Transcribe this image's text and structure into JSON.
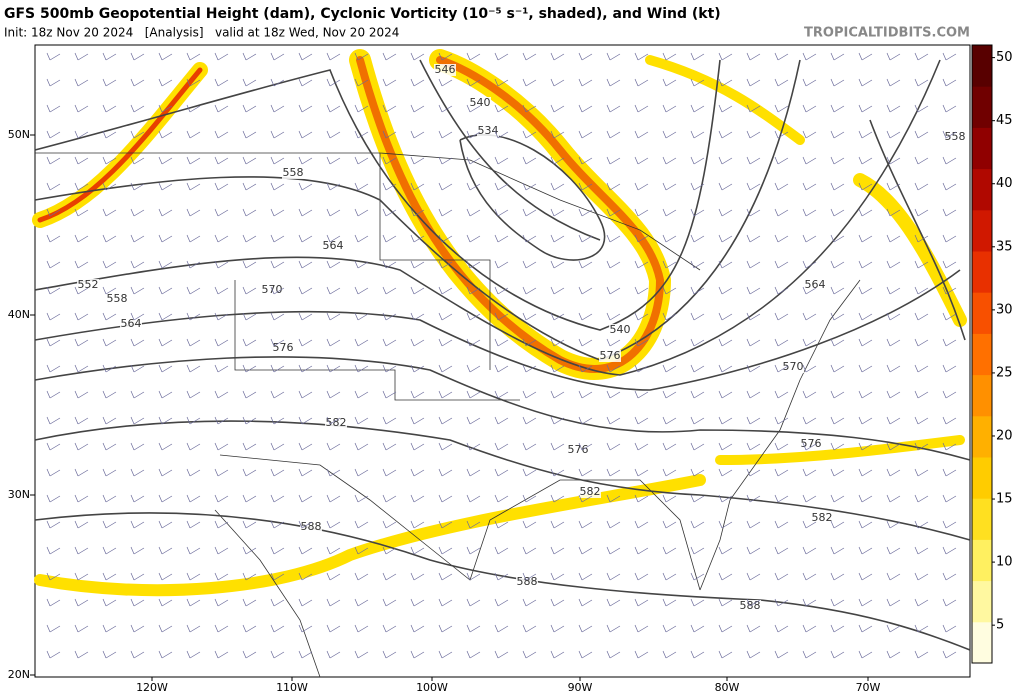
{
  "header": {
    "title": "GFS 500mb Geopotential Height (dam), Cyclonic Vorticity (10⁻⁵ s⁻¹, shaded), and Wind (kt)",
    "subtitle": "Init: 18z Nov 20 2024   [Analysis]   valid at 18z Wed, Nov 20 2024",
    "credit": "TROPICALTIDBITS.COM"
  },
  "lat_labels": [
    "50N",
    "40N",
    "30N",
    "20N"
  ],
  "lon_labels": [
    "120W",
    "110W",
    "100W",
    "90W",
    "80W",
    "70W"
  ],
  "contour_labels": [
    546,
    540,
    534,
    558,
    564,
    570,
    576,
    582,
    588,
    552,
    558,
    564,
    540,
    576,
    564,
    570,
    576,
    576,
    582,
    582,
    588,
    588,
    558
  ],
  "colorbar": {
    "clim": [
      2,
      51
    ],
    "ticks": [
      5,
      10,
      15,
      20,
      25,
      30,
      35,
      40,
      45,
      50
    ],
    "colors": [
      "#fffde0",
      "#fff8a0",
      "#fff060",
      "#ffe020",
      "#ffcc00",
      "#ffb000",
      "#ff9000",
      "#ff7000",
      "#f85000",
      "#e83000",
      "#d01800",
      "#b00800",
      "#900000",
      "#700000",
      "#580000"
    ]
  }
}
